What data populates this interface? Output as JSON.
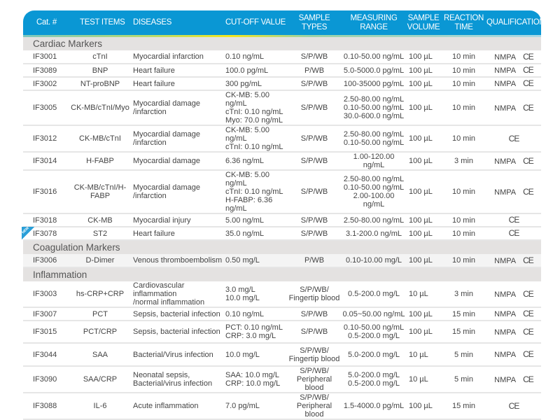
{
  "headers": [
    "Cat. #",
    "TEST ITEMS",
    "DISEASES",
    "CUT-OFF VALUE",
    "SAMPLE TYPES",
    "MEASURING RANGE",
    "SAMPLE VOLUME",
    "REACTION TIME",
    "QUALIFICATION"
  ],
  "sections": [
    {
      "title": "Cardiac Markers",
      "rows": [
        {
          "cat": "IF3001",
          "item": "cTnI",
          "disease": "Myocardial infarction",
          "cutoff": "0.10 ng/mL",
          "types": "S/P/WB",
          "range": "0.10-50.00 ng/mL",
          "volume": "100 µL",
          "time": "10 min",
          "nmpa": "NMPA",
          "ce": "CE",
          "h": 19
        },
        {
          "cat": "IF3089",
          "item": "BNP",
          "disease": "Heart failure",
          "cutoff": "100.0 pg/mL",
          "types": "P/WB",
          "range": "5.0-5000.0 pg/mL",
          "volume": "100 µL",
          "time": "10 min",
          "nmpa": "NMPA",
          "ce": "CE",
          "h": 19
        },
        {
          "cat": "IF3002",
          "item": "NT-proBNP",
          "disease": "Heart failure",
          "cutoff": "300 pg/mL",
          "types": "S/P/WB",
          "range": "100-35000 pg/mL",
          "volume": "100 µL",
          "time": "10 min",
          "nmpa": "NMPA",
          "ce": "CE",
          "h": 19
        },
        {
          "cat": "IF3005",
          "item": "CK-MB/cTnI/Myo",
          "disease": "Myocardial damage\n/infarction",
          "cutoff": "CK-MB: 5.00 ng/mL\ncTnI: 0.10 ng/mL\nMyo: 70.0 ng/mL",
          "types": "S/P/WB",
          "range": "2.50-80.00 ng/mL\n0.10-50.00 ng/mL\n30.0-600.0 ng/mL",
          "volume": "100 µL",
          "time": "10 min",
          "nmpa": "NMPA",
          "ce": "CE",
          "h": 45
        },
        {
          "cat": "IF3012",
          "item": "CK-MB/cTnI",
          "disease": "Myocardial damage\n/infarction",
          "cutoff": "CK-MB: 5.00 ng/mL\ncTnI: 0.10 ng/mL",
          "types": "S/P/WB",
          "range": "2.50-80.00 ng/mL\n0.10-50.00 ng/mL",
          "volume": "100 µL",
          "time": "10 min",
          "nmpa": "",
          "ce": "CE",
          "h": 31
        },
        {
          "cat": "IF3014",
          "item": "H-FABP",
          "disease": "Myocardial damage",
          "cutoff": "6.36 ng/mL",
          "types": "S/P/WB",
          "range": "1.00-120.00 ng/mL",
          "volume": "100 µL",
          "time": "3 min",
          "nmpa": "NMPA",
          "ce": "CE",
          "h": 19
        },
        {
          "cat": "IF3016",
          "item": "CK-MB/cTnI/H-FABP",
          "disease": "Myocardial damage\n/infarction",
          "cutoff": "CK-MB: 5.00 ng/mL\ncTnI: 0.10 ng/mL\nH-FABP: 6.36 ng/mL",
          "types": "S/P/WB",
          "range": "2.50-80.00 ng/mL\n0.10-50.00 ng/mL\n2.00-100.00 ng/mL",
          "volume": "100 µL",
          "time": "10 min",
          "nmpa": "NMPA",
          "ce": "CE",
          "h": 45
        },
        {
          "cat": "IF3018",
          "item": "CK-MB",
          "disease": "Myocardial injury",
          "cutoff": "5.00 ng/mL",
          "types": "S/P/WB",
          "range": "2.50-80.00 ng/mL",
          "volume": "100 µL",
          "time": "10 min",
          "nmpa": "",
          "ce": "CE",
          "h": 19
        },
        {
          "cat": "IF3078",
          "item": "ST2",
          "disease": "Heart failure",
          "cutoff": "35.0 ng/mL",
          "types": "S/P/WB",
          "range": "3.1-200.0 ng/mL",
          "volume": "100 µL",
          "time": "10 min",
          "nmpa": "",
          "ce": "CE",
          "h": 19,
          "new": "NEW"
        }
      ]
    },
    {
      "title": "Coagulation Markers",
      "rows": [
        {
          "cat": "IF3006",
          "item": "D-Dimer",
          "disease": "Venous thromboembolism",
          "cutoff": "0.50 mg/L",
          "types": "P/WB",
          "range": "0.10-10.00 mg/L",
          "volume": "100 µL",
          "time": "10 min",
          "nmpa": "NMPA",
          "ce": "CE",
          "h": 19
        }
      ]
    },
    {
      "title": "Inflammation",
      "rows": [
        {
          "cat": "IF3003",
          "item": "hs-CRP+CRP",
          "disease": "Cardiovascular inflammation\n/normal inflammation",
          "cutoff": "3.0 mg/L\n10.0 mg/L",
          "types": "S/P/WB/\nFingertip blood",
          "range": "0.5-200.0 mg/L",
          "volume": "10 µL",
          "time": "3 min",
          "nmpa": "NMPA",
          "ce": "CE",
          "h": 30
        },
        {
          "cat": "IF3007",
          "item": "PCT",
          "disease": "Sepsis, bacterial infection",
          "cutoff": "0.10 ng/mL",
          "types": "S/P/WB",
          "range": "0.05~50.00 ng/mL",
          "volume": "100 µL",
          "time": "15 min",
          "nmpa": "NMPA",
          "ce": "CE",
          "h": 19
        },
        {
          "cat": "IF3015",
          "item": "PCT/CRP",
          "disease": "Sepsis, bacterial infection",
          "cutoff": "PCT: 0.10 ng/mL\nCRP: 3.0 mg/L",
          "types": "S/P/WB",
          "range": "0.10-50.00 ng/mL\n0.5-200.0 mg/L",
          "volume": "100 µL",
          "time": "15 min",
          "nmpa": "NMPA",
          "ce": "CE",
          "h": 32
        },
        {
          "cat": "IF3044",
          "item": "SAA",
          "disease": "Bacterial/Virus infection",
          "cutoff": "10.0 mg/L",
          "types": "S/P/WB/\nFingertip blood",
          "range": "5.0-200.0 mg/L",
          "volume": "10 µL",
          "time": "5 min",
          "nmpa": "NMPA",
          "ce": "CE",
          "h": 33
        },
        {
          "cat": "IF3090",
          "item": "SAA/CRP",
          "disease": "Neonatal sepsis,\nBacterial/virus infection",
          "cutoff": "SAA: 10.0 mg/L\nCRP: 10.0 mg/L",
          "types": "S/P/WB/\nPeripheral blood",
          "range": "5.0-200.0 mg/L\n0.5-200.0 mg/L",
          "volume": "10 µL",
          "time": "5 min",
          "nmpa": "NMPA",
          "ce": "CE",
          "h": 32
        },
        {
          "cat": "IF3088",
          "item": "IL-6",
          "disease": "Acute inflammation",
          "cutoff": "7.0 pg/mL",
          "types": "S/P/WB/\nPeripheral blood",
          "range": "1.5-4000.0 pg/mL",
          "volume": "100 µL",
          "time": "15 min",
          "nmpa": "",
          "ce": "CE",
          "h": 30
        }
      ]
    }
  ]
}
